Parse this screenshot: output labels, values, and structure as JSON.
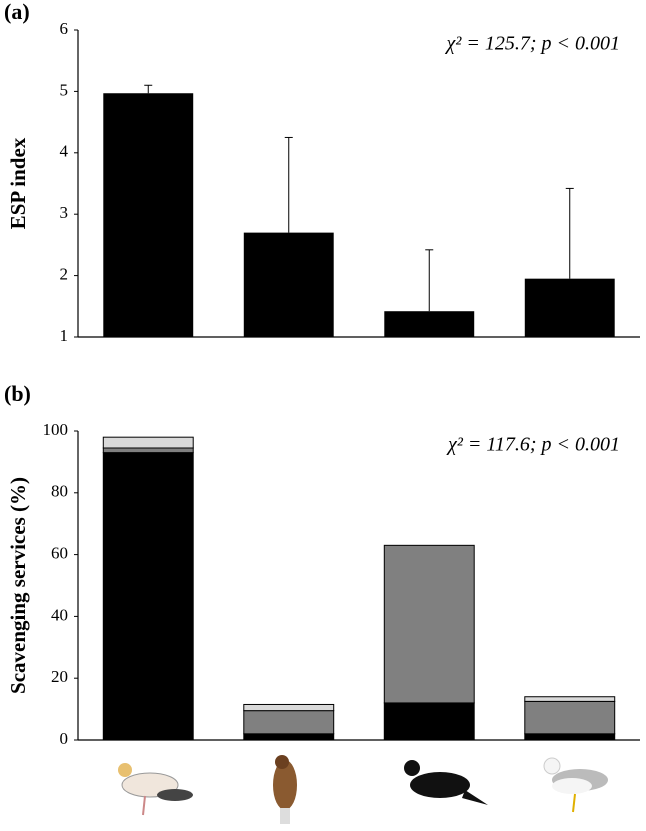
{
  "chart_data": [
    {
      "type": "bar",
      "title": "(a)",
      "y_label": "ESP index",
      "annotation": "χ² = 125.7; p < 0.001",
      "categories": [
        null,
        null,
        null,
        null
      ],
      "values": [
        4.97,
        2.7,
        1.42,
        1.95
      ],
      "errors": [
        0.13,
        1.55,
        1.0,
        1.47
      ],
      "color": "#000000",
      "ylim": [
        1,
        6
      ],
      "yticks": [
        1,
        2,
        3,
        4,
        5,
        6
      ]
    },
    {
      "type": "stacked_bar",
      "title": "(b)",
      "y_label": "Scavenging services (%)",
      "annotation": "χ² = 117.6; p < 0.001",
      "categories": [
        null,
        null,
        null,
        null
      ],
      "series": [
        {
          "color": "#000000",
          "values": [
            93,
            2,
            12,
            2
          ]
        },
        {
          "color": "#808080",
          "values": [
            1.5,
            7.5,
            51,
            10.5
          ]
        },
        {
          "color": "#d9d9d9",
          "values": [
            3.5,
            2,
            0,
            1.5
          ]
        }
      ],
      "ylim": [
        0,
        100
      ],
      "yticks": [
        0,
        20,
        40,
        60,
        80,
        100
      ]
    }
  ]
}
